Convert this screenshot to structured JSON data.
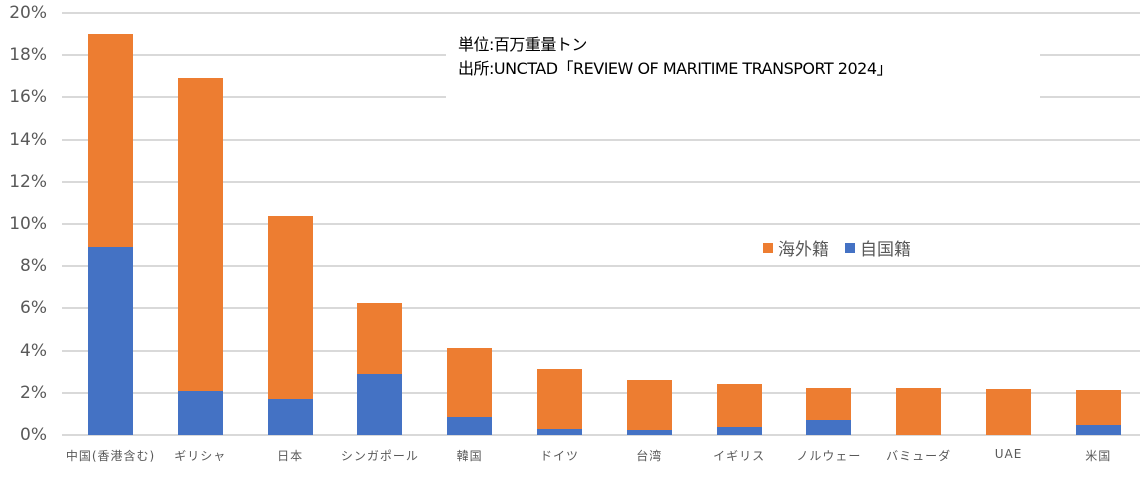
{
  "chart_data": {
    "type": "bar",
    "stacked": true,
    "title": "",
    "xlabel": "",
    "ylabel": "",
    "ylim": [
      0,
      20
    ],
    "y_tick_labels": [
      "0%",
      "2%",
      "4%",
      "6%",
      "8%",
      "10%",
      "12%",
      "14%",
      "16%",
      "18%",
      "20%"
    ],
    "grid": true,
    "legend_position": "inside-right",
    "categories": [
      "中国(香港含む)",
      "ギリシャ",
      "日本",
      "シンガポール",
      "韓国",
      "ドイツ",
      "台湾",
      "イギリス",
      "ノルウェー",
      "バミューダ",
      "UAE",
      "米国"
    ],
    "series": [
      {
        "name": "自国籍",
        "color": "#4472c4",
        "values": [
          8.9,
          2.1,
          1.7,
          2.9,
          0.85,
          0.3,
          0.25,
          0.4,
          0.7,
          0.0,
          0.0,
          0.45
        ]
      },
      {
        "name": "海外籍",
        "color": "#ed7d31",
        "values": [
          10.1,
          14.8,
          8.7,
          3.35,
          3.25,
          2.83,
          2.35,
          2.02,
          1.53,
          2.23,
          2.18,
          1.68
        ]
      }
    ],
    "totals": [
      19.0,
      16.9,
      10.4,
      6.25,
      4.1,
      3.13,
      2.6,
      2.42,
      2.23,
      2.23,
      2.18,
      2.13
    ],
    "annotations": [
      "単位:百万重量トン",
      "出所:UNCTAD「REVIEW OF MARITIME TRANSPORT 2024」"
    ]
  },
  "note": {
    "unit": "単位:百万重量トン",
    "source": "出所:UNCTAD「REVIEW OF MARITIME TRANSPORT 2024」"
  },
  "legend": {
    "items": [
      {
        "label": "海外籍",
        "color": "#ed7d31"
      },
      {
        "label": "自国籍",
        "color": "#4472c4"
      }
    ]
  }
}
